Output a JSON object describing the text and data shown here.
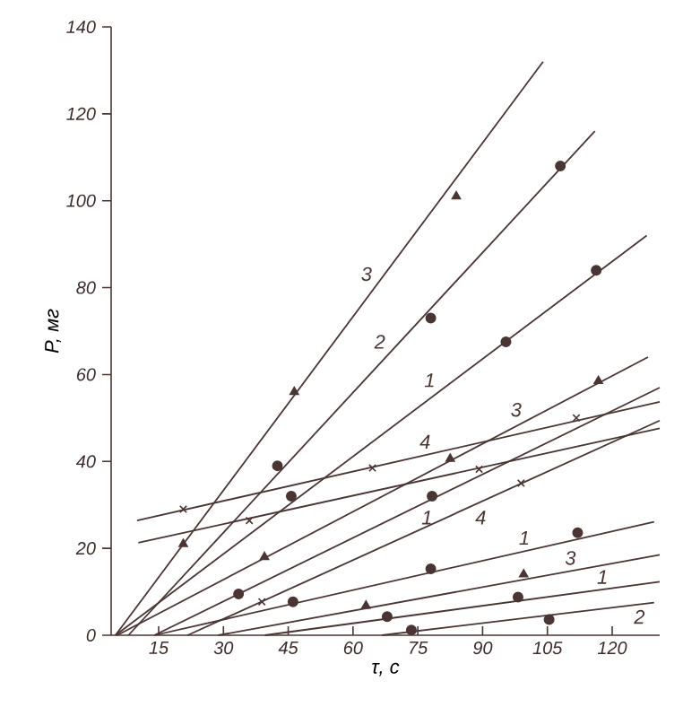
{
  "chart_data": {
    "type": "line",
    "xlabel": "τ, с",
    "ylabel": "P, мг",
    "xlim": [
      4,
      131
    ],
    "ylim": [
      0,
      140
    ],
    "xticks": [
      15,
      30,
      45,
      60,
      75,
      90,
      105,
      120
    ],
    "yticks": [
      0,
      20,
      40,
      60,
      80,
      100,
      120,
      140
    ],
    "series": [
      {
        "name": "3",
        "color": "#4a3535",
        "marker": "none",
        "x": [
          5,
          104
        ],
        "values": [
          0,
          132
        ]
      },
      {
        "type": "scatter",
        "color": "#4a3535",
        "marker": "triangle",
        "x": [
          20.7,
          46.4,
          83.9
        ],
        "values": [
          21,
          56,
          101
        ]
      },
      {
        "name": "2",
        "color": "#4a3535",
        "marker": "none",
        "x": [
          8,
          116
        ],
        "values": [
          0,
          116
        ]
      },
      {
        "type": "scatter",
        "color": "#4a3535",
        "marker": "circle",
        "x": [
          42.5,
          78,
          108
        ],
        "values": [
          39,
          73,
          108
        ]
      },
      {
        "name": "1",
        "color": "#4a3535",
        "marker": "none",
        "x": [
          5,
          128
        ],
        "values": [
          0,
          92
        ]
      },
      {
        "type": "scatter",
        "color": "#4a3535",
        "marker": "circle",
        "x": [
          45.7,
          95.4,
          116.3
        ],
        "values": [
          32,
          67.5,
          84
        ]
      },
      {
        "name": "3",
        "color": "#4a3535",
        "marker": "none",
        "x": [
          5.4,
          128.3
        ],
        "values": [
          0,
          64
        ]
      },
      {
        "type": "scatter",
        "color": "#4a3535",
        "marker": "triangle",
        "x": [
          39.5,
          82.5,
          116.8
        ],
        "values": [
          18,
          40.6,
          58.5
        ]
      },
      {
        "name": "1",
        "color": "#4a3535",
        "marker": "none",
        "x": [
          14,
          131
        ],
        "values": [
          0,
          57
        ]
      },
      {
        "type": "scatter",
        "color": "#4a3535",
        "marker": "circle",
        "x": [
          33.5,
          78.3
        ],
        "values": [
          9.5,
          32
        ]
      },
      {
        "name": "4",
        "color": "#4a3535",
        "marker": "none",
        "x": [
          21.7,
          131
        ],
        "values": [
          0,
          49.4
        ]
      },
      {
        "type": "scatter",
        "color": "#4a3535",
        "marker": "cross",
        "x": [
          38.9,
          98.9
        ],
        "values": [
          7.7,
          35
        ]
      },
      {
        "name": "4",
        "color": "#4a3535",
        "marker": "none",
        "x": [
          10,
          131
        ],
        "values": [
          26.4,
          53.7
        ]
      },
      {
        "type": "scatter",
        "color": "#4a3535",
        "marker": "cross",
        "x": [
          20.7,
          64.5,
          111.7
        ],
        "values": [
          29,
          38.5,
          50
        ]
      },
      {
        "color": "#4a3535",
        "marker": "none",
        "x": [
          10.3,
          131
        ],
        "values": [
          21.3,
          47.6
        ]
      },
      {
        "type": "scatter",
        "color": "#4a3535",
        "marker": "cross",
        "x": [
          36,
          89.2
        ],
        "values": [
          26.4,
          38.2
        ]
      },
      {
        "name": "1",
        "color": "#4a3535",
        "marker": "none",
        "x": [
          14,
          129.7
        ],
        "values": [
          0,
          26.1
        ]
      },
      {
        "type": "scatter",
        "color": "#4a3535",
        "marker": "circle",
        "x": [
          46.1,
          78,
          112
        ],
        "values": [
          7.7,
          15.3,
          23.6
        ]
      },
      {
        "name": "3",
        "color": "#4a3535",
        "marker": "none",
        "x": [
          28.8,
          131
        ],
        "values": [
          0,
          18.5
        ]
      },
      {
        "type": "scatter",
        "color": "#4a3535",
        "marker": "triangle",
        "x": [
          63,
          99.5
        ],
        "values": [
          6.8,
          14
        ]
      },
      {
        "name": "1",
        "color": "#4a3535",
        "marker": "none",
        "x": [
          39.6,
          131
        ],
        "values": [
          0,
          12.3
        ]
      },
      {
        "type": "scatter",
        "color": "#4a3535",
        "marker": "circle",
        "x": [
          67.9,
          98.2
        ],
        "values": [
          4.3,
          8.8
        ]
      },
      {
        "name": "2",
        "color": "#4a3535",
        "marker": "none",
        "x": [
          66.7,
          129.7
        ],
        "values": [
          0,
          7.5
        ]
      },
      {
        "type": "scatter",
        "color": "#4a3535",
        "marker": "circle",
        "x": [
          73.5,
          105.4
        ],
        "values": [
          1.2,
          3.6
        ]
      }
    ]
  }
}
